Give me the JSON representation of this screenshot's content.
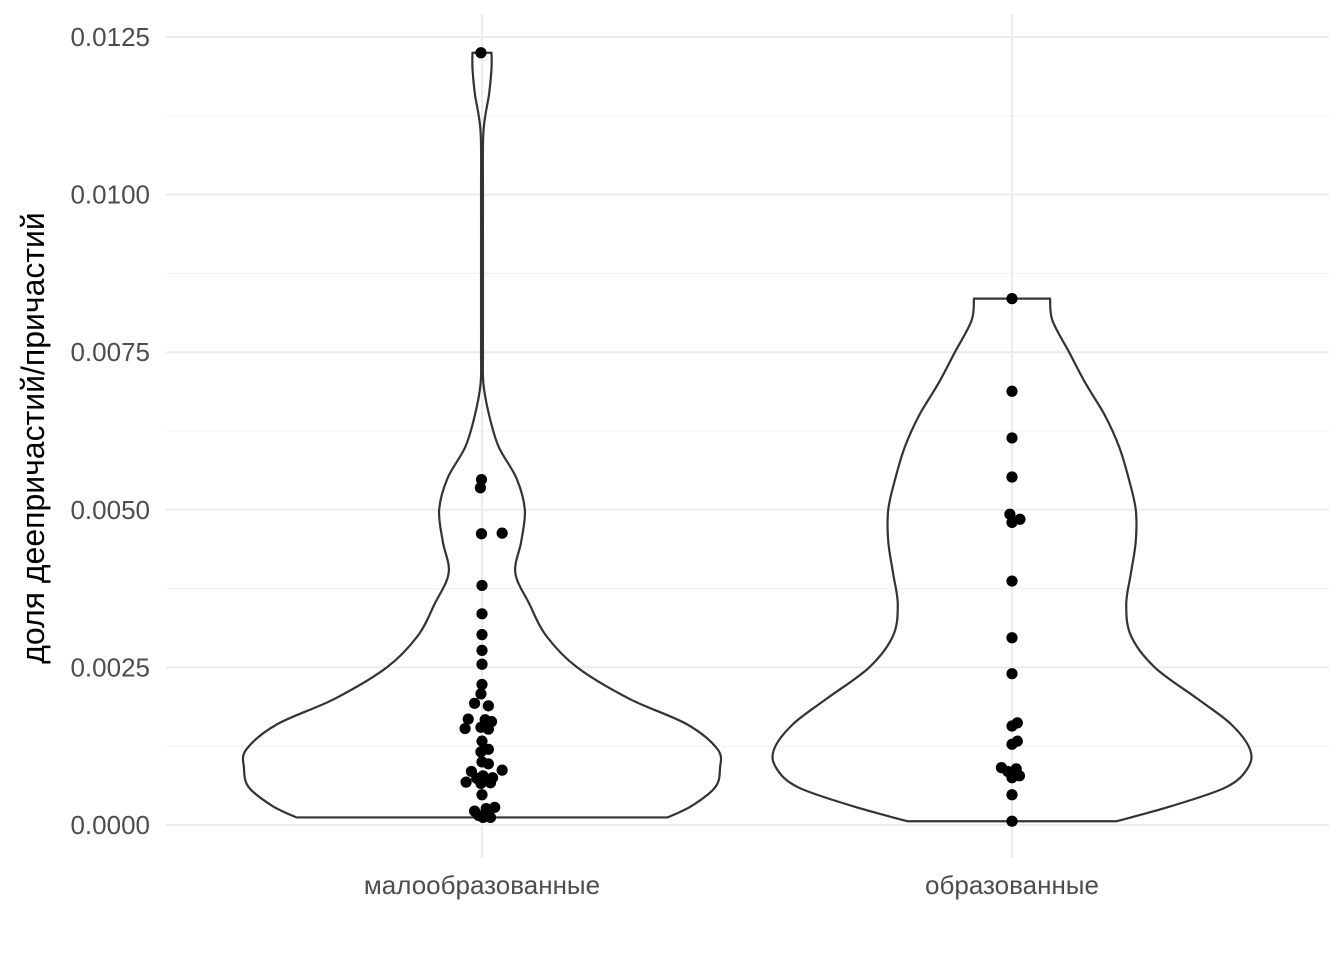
{
  "chart_data": {
    "type": "violin",
    "title": "",
    "xlabel": "",
    "ylabel": "доля деепричастий/причастий",
    "ylim": [
      -0.0002,
      0.0128
    ],
    "yticks": [
      0.0,
      0.0025,
      0.005,
      0.0075,
      0.01,
      0.0125
    ],
    "ytick_labels": [
      "0.0000",
      "0.0025",
      "0.0050",
      "0.0075",
      "0.0100",
      "0.0125"
    ],
    "grid": true,
    "categories": [
      "малообразованные",
      "образованные"
    ],
    "groups": [
      {
        "name": "малообразованные",
        "range": [
          0.00012,
          0.01225
        ],
        "density": [
          [
            0.00012,
            0.78
          ],
          [
            0.0003,
            0.88
          ],
          [
            0.0006,
            0.98
          ],
          [
            0.0009,
            1.0
          ],
          [
            0.0012,
            0.99
          ],
          [
            0.0016,
            0.86
          ],
          [
            0.002,
            0.62
          ],
          [
            0.0025,
            0.4
          ],
          [
            0.003,
            0.27
          ],
          [
            0.0035,
            0.2
          ],
          [
            0.004,
            0.14
          ],
          [
            0.0045,
            0.165
          ],
          [
            0.005,
            0.18
          ],
          [
            0.0055,
            0.145
          ],
          [
            0.006,
            0.07
          ],
          [
            0.0065,
            0.03
          ],
          [
            0.007,
            0.006
          ],
          [
            0.0075,
            0.004
          ],
          [
            0.008,
            0.004
          ],
          [
            0.009,
            0.004
          ],
          [
            0.01,
            0.004
          ],
          [
            0.011,
            0.006
          ],
          [
            0.0116,
            0.03
          ],
          [
            0.012,
            0.04
          ],
          [
            0.01225,
            0.04
          ]
        ],
        "points": [
          [
            -0.002,
            0.01225
          ],
          [
            -0.001,
            0.00548
          ],
          [
            -0.003,
            0.00535
          ],
          [
            -0.001,
            0.00462
          ],
          [
            0.038,
            0.00463
          ],
          [
            0.0,
            0.0038
          ],
          [
            0.0,
            0.00335
          ],
          [
            0.0,
            0.00302
          ],
          [
            0.0,
            0.00277
          ],
          [
            0.0,
            0.00255
          ],
          [
            0.0,
            0.00223
          ],
          [
            -0.002,
            0.00208
          ],
          [
            -0.014,
            0.00193
          ],
          [
            0.012,
            0.00189
          ],
          [
            -0.026,
            0.00168
          ],
          [
            0.006,
            0.00167
          ],
          [
            0.018,
            0.00164
          ],
          [
            -0.032,
            0.00153
          ],
          [
            0.012,
            0.00152
          ],
          [
            -0.002,
            0.00155
          ],
          [
            0.0,
            0.00133
          ],
          [
            -0.002,
            0.00116
          ],
          [
            0.012,
            0.0012
          ],
          [
            0.0,
            0.001
          ],
          [
            0.012,
            0.00097
          ],
          [
            -0.02,
            0.00085
          ],
          [
            0.038,
            0.00087
          ],
          [
            0.002,
            0.00078
          ],
          [
            -0.01,
            0.00074
          ],
          [
            0.02,
            0.00075
          ],
          [
            -0.03,
            0.00068
          ],
          [
            -0.002,
            0.00066
          ],
          [
            0.016,
            0.00067
          ],
          [
            0.0,
            0.00048
          ],
          [
            -0.014,
            0.00022
          ],
          [
            0.008,
            0.00026
          ],
          [
            0.024,
            0.00028
          ],
          [
            -0.006,
            0.00015
          ],
          [
            0.002,
            0.00012
          ],
          [
            0.016,
            0.00012
          ]
        ]
      },
      {
        "name": "образованные",
        "range": [
          6e-05,
          0.00835
        ],
        "density": [
          [
            6e-05,
            0.44
          ],
          [
            0.0003,
            0.67
          ],
          [
            0.0006,
            0.9
          ],
          [
            0.0009,
            0.99
          ],
          [
            0.0012,
            1.0
          ],
          [
            0.0016,
            0.92
          ],
          [
            0.002,
            0.78
          ],
          [
            0.0025,
            0.6
          ],
          [
            0.003,
            0.5
          ],
          [
            0.0035,
            0.48
          ],
          [
            0.004,
            0.5
          ],
          [
            0.0045,
            0.52
          ],
          [
            0.005,
            0.52
          ],
          [
            0.0055,
            0.49
          ],
          [
            0.006,
            0.45
          ],
          [
            0.0065,
            0.39
          ],
          [
            0.007,
            0.31
          ],
          [
            0.0075,
            0.24
          ],
          [
            0.008,
            0.17
          ],
          [
            0.00835,
            0.16
          ]
        ],
        "points": [
          [
            0.0,
            0.00835
          ],
          [
            0.0,
            0.00688
          ],
          [
            0.0,
            0.00614
          ],
          [
            0.0,
            0.00552
          ],
          [
            -0.004,
            0.00493
          ],
          [
            0.0,
            0.0048
          ],
          [
            0.015,
            0.00485
          ],
          [
            0.0,
            0.00387
          ],
          [
            0.0,
            0.00297
          ],
          [
            0.0,
            0.0024
          ],
          [
            0.01,
            0.00162
          ],
          [
            0.0,
            0.00157
          ],
          [
            0.01,
            0.00133
          ],
          [
            0.0,
            0.00128
          ],
          [
            -0.02,
            0.00091
          ],
          [
            -0.008,
            0.00085
          ],
          [
            0.008,
            0.00089
          ],
          [
            0.0,
            0.00075
          ],
          [
            0.014,
            0.00078
          ],
          [
            0.0,
            0.00048
          ],
          [
            0.0,
            6e-05
          ]
        ]
      }
    ]
  }
}
